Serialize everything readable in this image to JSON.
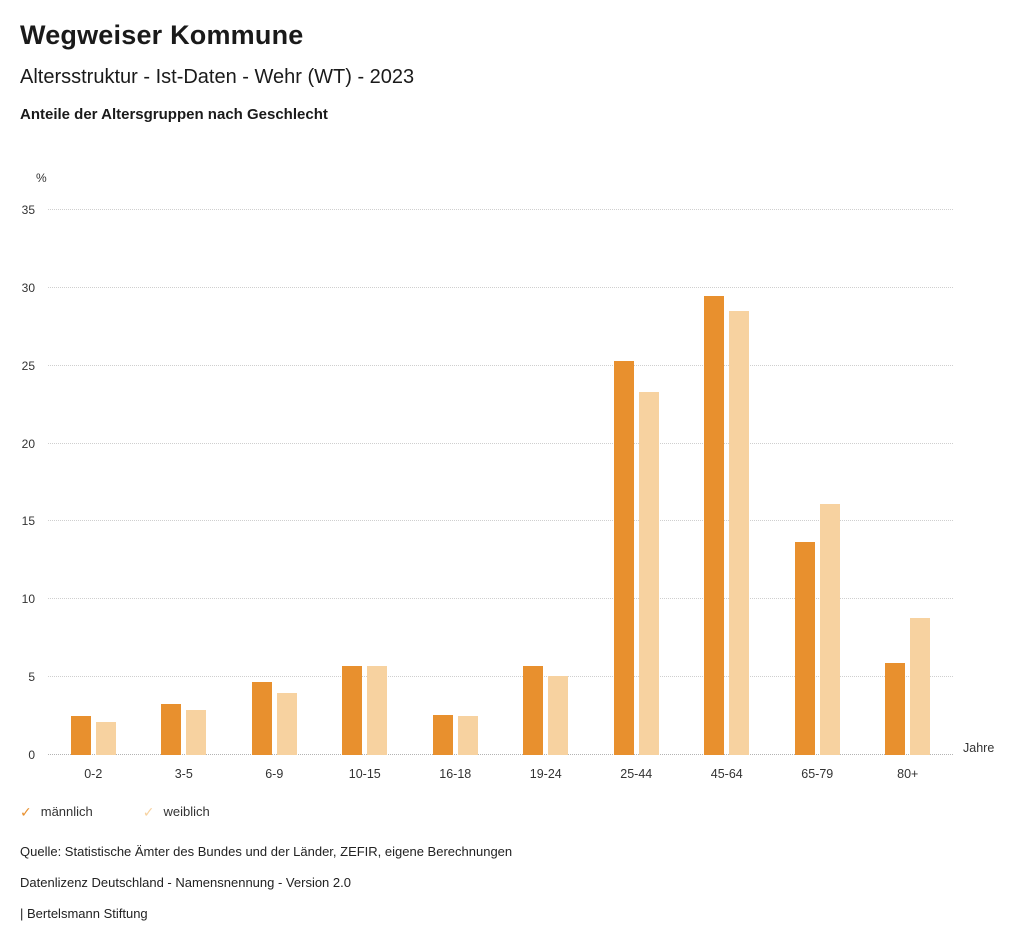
{
  "header": {
    "title": "Wegweiser Kommune",
    "subtitle": "Altersstruktur - Ist-Daten - Wehr (WT) - 2023",
    "chart_heading": "Anteile der Altersgruppen nach Geschlecht"
  },
  "chart_data": {
    "type": "bar",
    "title": "Anteile der Altersgruppen nach Geschlecht",
    "xlabel": "Jahre",
    "ylabel": "%",
    "ylim": [
      0,
      35
    ],
    "ytick_step": 5,
    "grid": true,
    "legend_position": "bottom-left",
    "categories": [
      "0-2",
      "3-5",
      "6-9",
      "10-15",
      "16-18",
      "19-24",
      "25-44",
      "45-64",
      "65-79",
      "80+"
    ],
    "series": [
      {
        "name": "männlich",
        "color": "#E8902E",
        "values": [
          2.5,
          3.3,
          4.7,
          5.7,
          2.6,
          5.7,
          25.3,
          29.5,
          13.7,
          5.9
        ]
      },
      {
        "name": "weiblich",
        "color": "#F7D2A0",
        "values": [
          2.1,
          2.9,
          4.0,
          5.7,
          2.5,
          5.1,
          23.3,
          28.5,
          16.1,
          8.8
        ]
      }
    ]
  },
  "legend": {
    "check_glyph": "✓"
  },
  "footer": {
    "source": "Quelle: Statistische Ämter des Bundes und der Länder, ZEFIR, eigene Berechnungen",
    "license": "Datenlizenz Deutschland - Namensnennung - Version 2.0",
    "brand": "| Bertelsmann Stiftung"
  }
}
